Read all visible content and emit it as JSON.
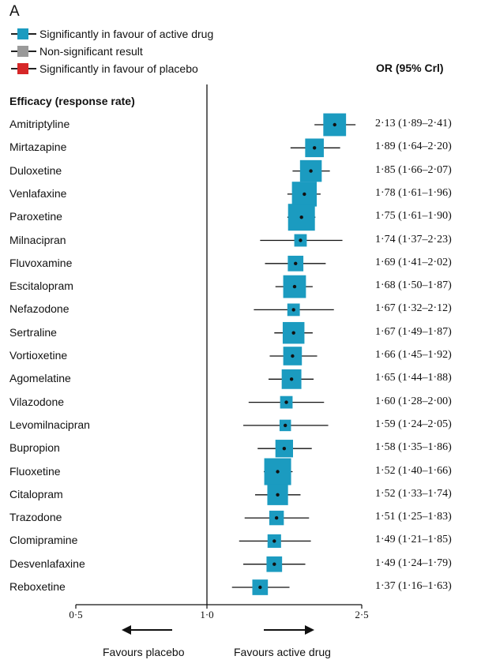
{
  "panel_label": "A",
  "legend": [
    {
      "label": "Significantly in favour of active drug",
      "color": "#1b9bc0"
    },
    {
      "label": "Non-significant result",
      "color": "#9a9a9a"
    },
    {
      "label": "Significantly in favour of placebo",
      "color": "#d62728"
    }
  ],
  "or_header": "OR (95% Crl)",
  "section_label": "Efficacy (response rate)",
  "footer": {
    "favours_placebo": "Favours placebo",
    "favours_active": "Favours active drug"
  },
  "chart_data": {
    "type": "forest",
    "x_scale": "log",
    "xlim": [
      0.5,
      2.5
    ],
    "reference_line": 1.0,
    "ticks": [
      {
        "value": 0.5,
        "label": "0·5"
      },
      {
        "value": 1.0,
        "label": "1·0"
      },
      {
        "value": 2.5,
        "label": "2·5"
      }
    ],
    "rows": [
      {
        "drug": "Amitriptyline",
        "or": 2.13,
        "lo": 1.89,
        "hi": 2.41,
        "text": "2·13 (1·89–2·41)",
        "weight": 0.8
      },
      {
        "drug": "Mirtazapine",
        "or": 1.89,
        "lo": 1.64,
        "hi": 2.2,
        "text": "1·89 (1·64–2·20)",
        "weight": 0.6
      },
      {
        "drug": "Duloxetine",
        "or": 1.85,
        "lo": 1.66,
        "hi": 2.07,
        "text": "1·85 (1·66–2·07)",
        "weight": 0.75
      },
      {
        "drug": "Venlafaxine",
        "or": 1.78,
        "lo": 1.61,
        "hi": 1.96,
        "text": "1·78 (1·61–1·96)",
        "weight": 0.9
      },
      {
        "drug": "Paroxetine",
        "or": 1.75,
        "lo": 1.61,
        "hi": 1.9,
        "text": "1·75 (1·61–1·90)",
        "weight": 1.0
      },
      {
        "drug": "Milnacipran",
        "or": 1.74,
        "lo": 1.37,
        "hi": 2.23,
        "text": "1·74 (1·37–2·23)",
        "weight": 0.3
      },
      {
        "drug": "Fluvoxamine",
        "or": 1.69,
        "lo": 1.41,
        "hi": 2.02,
        "text": "1·69 (1·41–2·02)",
        "weight": 0.45
      },
      {
        "drug": "Escitalopram",
        "or": 1.68,
        "lo": 1.5,
        "hi": 1.87,
        "text": "1·68 (1·50–1·87)",
        "weight": 0.8
      },
      {
        "drug": "Nefazodone",
        "or": 1.67,
        "lo": 1.32,
        "hi": 2.12,
        "text": "1·67 (1·32–2·12)",
        "weight": 0.3
      },
      {
        "drug": "Sertraline",
        "or": 1.67,
        "lo": 1.49,
        "hi": 1.87,
        "text": "1·67 (1·49–1·87)",
        "weight": 0.75
      },
      {
        "drug": "Vortioxetine",
        "or": 1.66,
        "lo": 1.45,
        "hi": 1.92,
        "text": "1·66 (1·45–1·92)",
        "weight": 0.6
      },
      {
        "drug": "Agomelatine",
        "or": 1.65,
        "lo": 1.44,
        "hi": 1.88,
        "text": "1·65 (1·44–1·88)",
        "weight": 0.65
      },
      {
        "drug": "Vilazodone",
        "or": 1.6,
        "lo": 1.28,
        "hi": 2.0,
        "text": "1·60 (1·28–2·00)",
        "weight": 0.3
      },
      {
        "drug": "Levomilnacipran",
        "or": 1.59,
        "lo": 1.24,
        "hi": 2.05,
        "text": "1·59 (1·24–2·05)",
        "weight": 0.25
      },
      {
        "drug": "Bupropion",
        "or": 1.58,
        "lo": 1.35,
        "hi": 1.86,
        "text": "1·58 (1·35–1·86)",
        "weight": 0.55
      },
      {
        "drug": "Fluoxetine",
        "or": 1.52,
        "lo": 1.4,
        "hi": 1.66,
        "text": "1·52 (1·40–1·66)",
        "weight": 1.0
      },
      {
        "drug": "Citalopram",
        "or": 1.52,
        "lo": 1.33,
        "hi": 1.74,
        "text": "1·52 (1·33–1·74)",
        "weight": 0.7
      },
      {
        "drug": "Trazodone",
        "or": 1.51,
        "lo": 1.25,
        "hi": 1.83,
        "text": "1·51 (1·25–1·83)",
        "weight": 0.4
      },
      {
        "drug": "Clomipramine",
        "or": 1.49,
        "lo": 1.21,
        "hi": 1.85,
        "text": "1·49 (1·21–1·85)",
        "weight": 0.35
      },
      {
        "drug": "Desvenlafaxine",
        "or": 1.49,
        "lo": 1.24,
        "hi": 1.79,
        "text": "1·49 (1·24–1·79)",
        "weight": 0.45
      },
      {
        "drug": "Reboxetine",
        "or": 1.37,
        "lo": 1.16,
        "hi": 1.63,
        "text": "1·37 (1·16–1·63)",
        "weight": 0.45
      }
    ],
    "significant_color": "#1b9bc0"
  }
}
